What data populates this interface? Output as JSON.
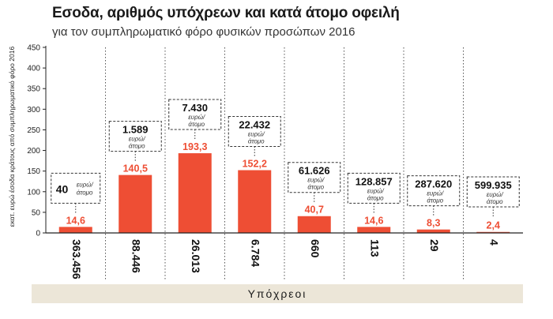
{
  "header": {
    "title": "Εσοδα, αριθμός υπόχρεων και κατά άτομο οφειλή",
    "subtitle": "για τον συμπληρωματικό φόρο φυσικών προσώπων 2016"
  },
  "chart_data": {
    "type": "bar",
    "ylabel": "εκατ. ευρώ έσοδα κράτους από συμπληρωματικό φόρο 2016",
    "xlabel": "Υπόχρεοι",
    "ylim": [
      0,
      450
    ],
    "yticks": [
      0,
      50,
      100,
      150,
      200,
      250,
      300,
      350,
      400,
      450
    ],
    "grid": "vertical-dashed",
    "categories": [
      "363.456",
      "88.446",
      "26.013",
      "6.784",
      "660",
      "113",
      "29",
      "4"
    ],
    "values": [
      14.6,
      140.5,
      193.3,
      152.2,
      40.7,
      14.6,
      8.3,
      2.4
    ],
    "value_labels": [
      "14,6",
      "140,5",
      "193,3",
      "152,2",
      "40,7",
      "14,6",
      "8,3",
      "2,4"
    ],
    "per_person_labels": [
      "40",
      "1.589",
      "7.430",
      "22.432",
      "61.626",
      "128.857",
      "287.620",
      "599.935"
    ],
    "per_person_unit_line1": "ευρώ/",
    "per_person_unit_line2": "άτομο",
    "colors": {
      "bar": "#ee4e34",
      "value_label": "#ee4e34",
      "band": "#ece6d8"
    }
  }
}
